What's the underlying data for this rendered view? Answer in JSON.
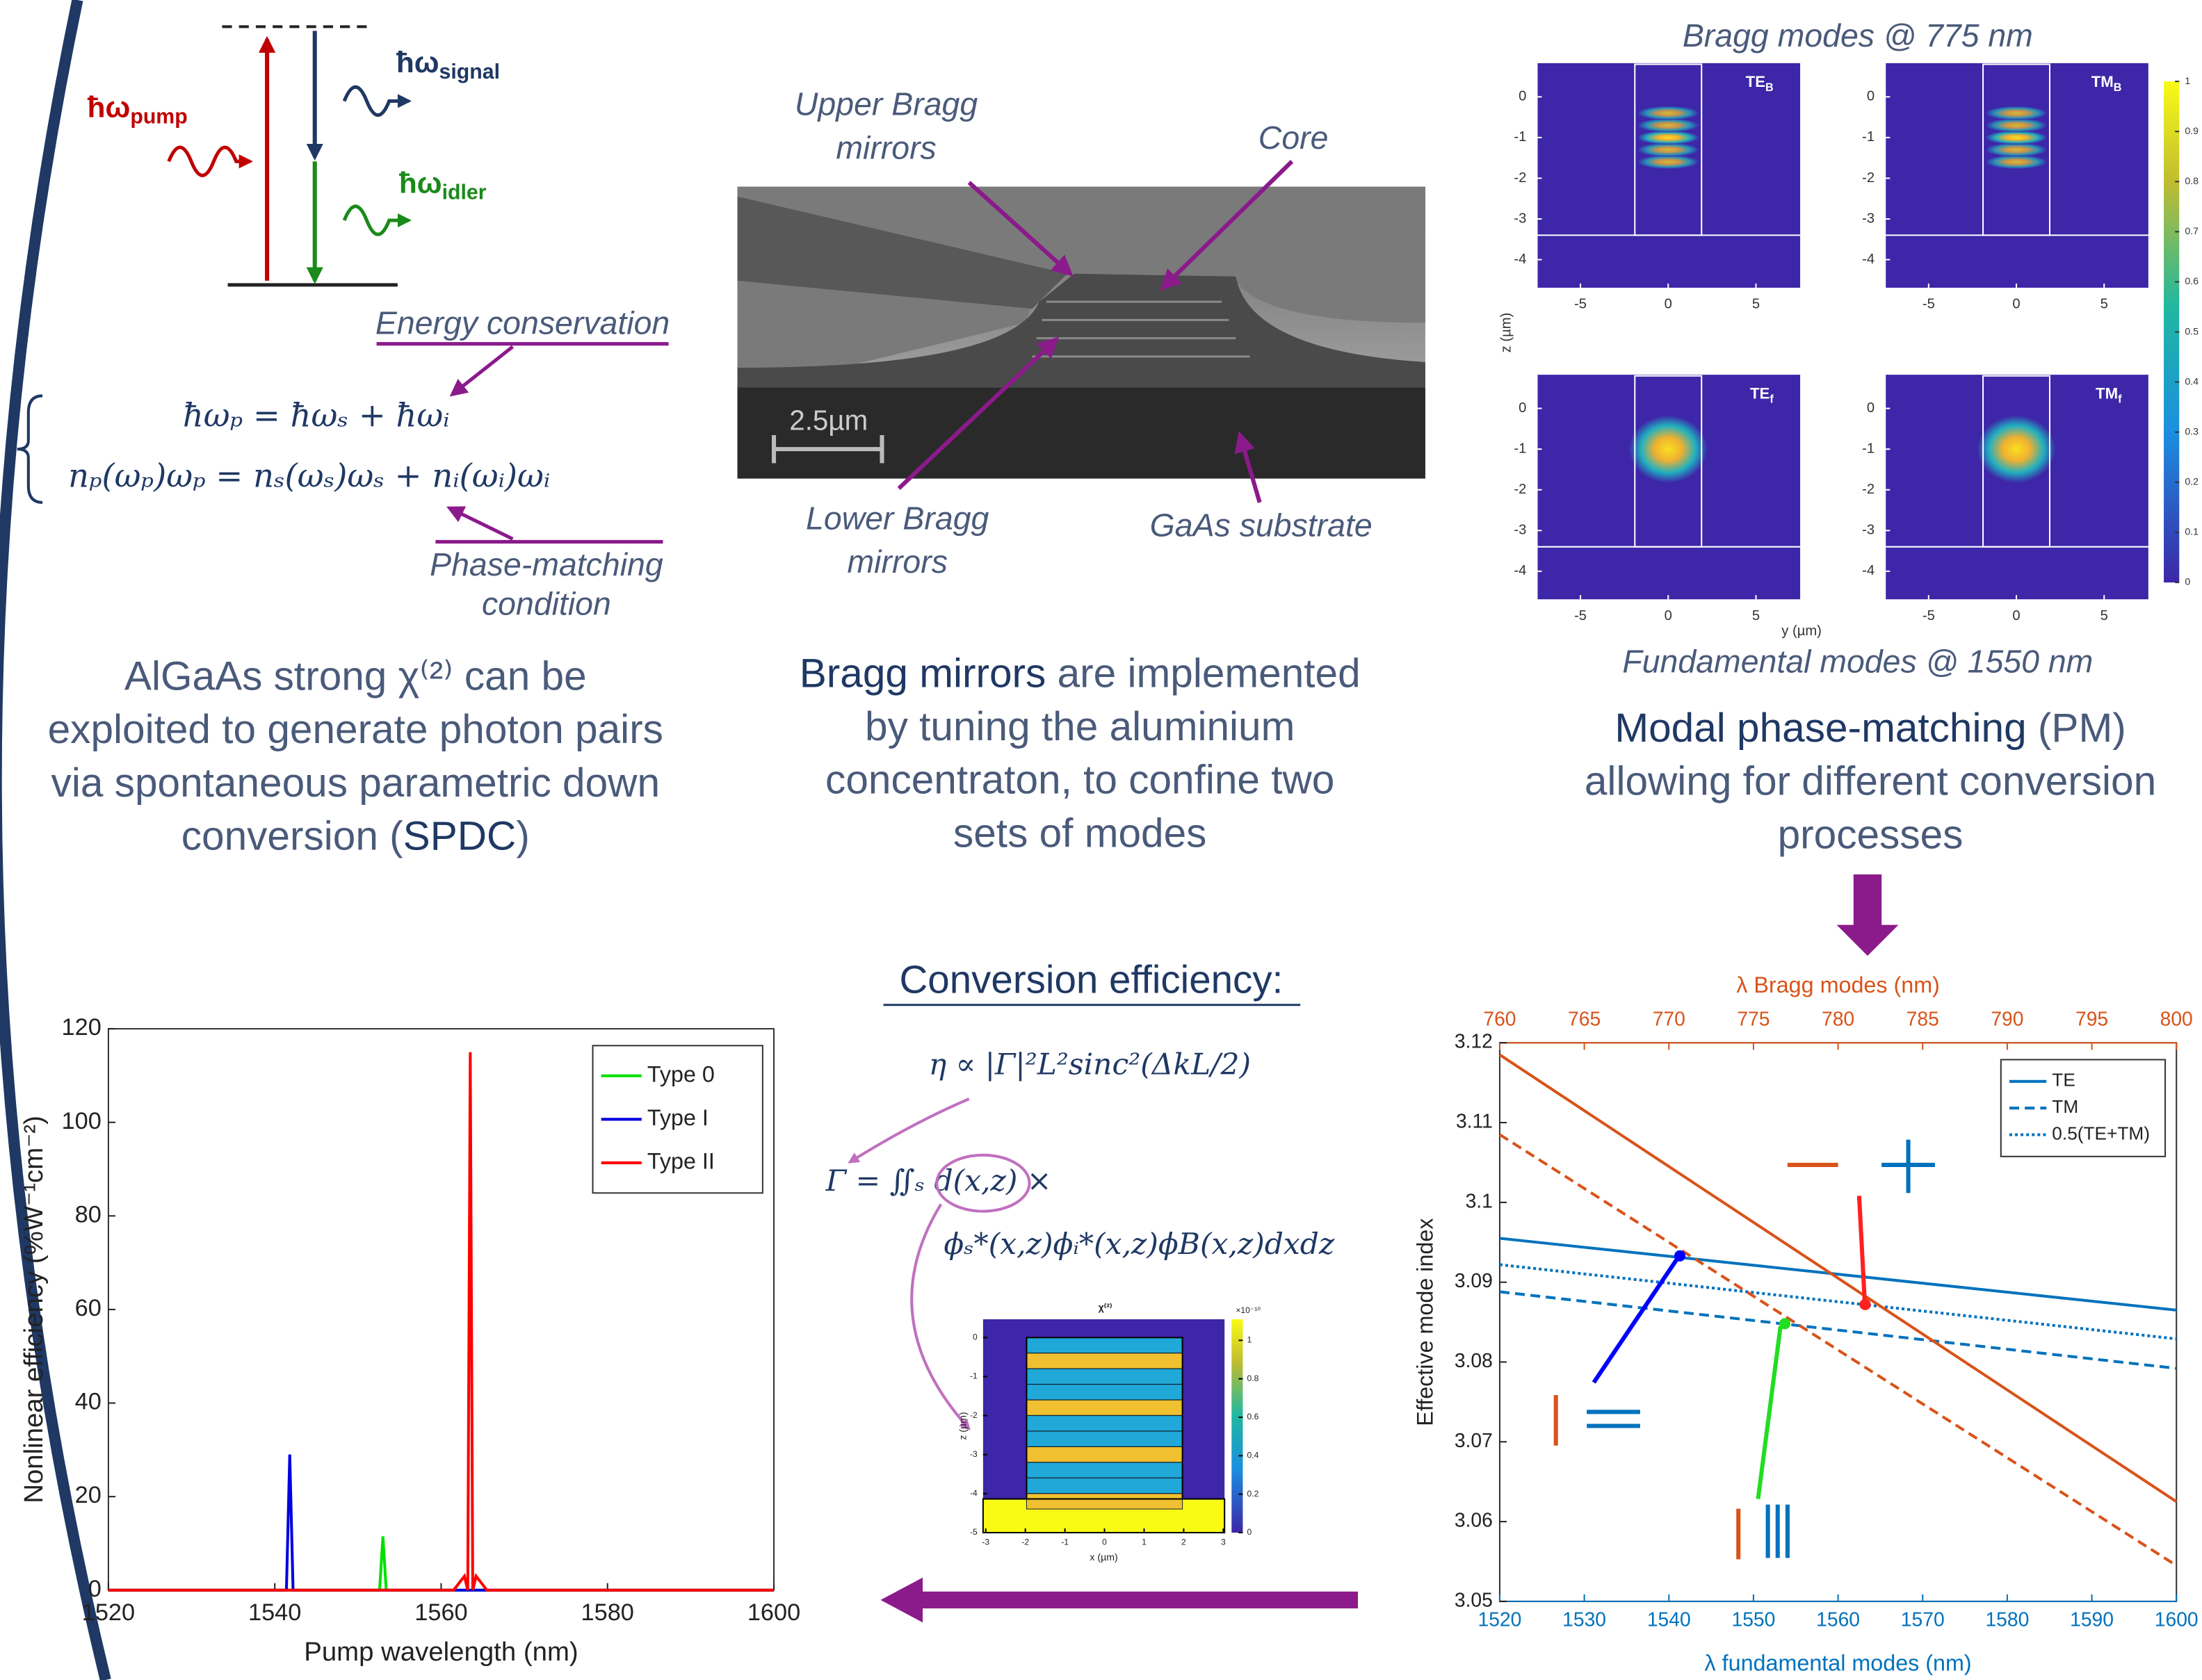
{
  "energy_diagram": {
    "pump": "ħω",
    "pump_sub": "pump",
    "signal": "ħω",
    "signal_sub": "signal",
    "idler": "ħω",
    "idler_sub": "idler"
  },
  "spdc_equations": {
    "energy_label": "Energy conservation",
    "eq1": "ħωₚ = ħωₛ + ħωᵢ",
    "eq2": "nₚ(ωₚ)ωₚ = nₛ(ωₛ)ωₛ + nᵢ(ωᵢ)ωᵢ",
    "phase_label": [
      "Phase-matching",
      "condition"
    ]
  },
  "captions": [
    [
      [
        {
          "text": "AlGaAs strong χ⁽²⁾ can be",
          "bold": false
        }
      ],
      [
        {
          "text": "exploited to generate photon pairs",
          "bold": false
        }
      ],
      [
        {
          "text": "via spontaneous parametric down",
          "bold": false
        }
      ],
      [
        {
          "text": "conversion (",
          "bold": false
        },
        {
          "text": "SPDC",
          "bold": true
        },
        {
          "text": ")",
          "bold": false
        }
      ]
    ],
    [
      [
        {
          "text": "Bragg mirrors",
          "bold": true
        },
        {
          "text": " are implemented",
          "bold": false
        }
      ],
      [
        {
          "text": "by tuning the aluminium",
          "bold": false
        }
      ],
      [
        {
          "text": "concentraton, to confine two",
          "bold": false
        }
      ],
      [
        {
          "text": "sets of modes",
          "bold": false
        }
      ]
    ],
    [
      [
        {
          "text": "Modal phase-matching",
          "bold": true
        },
        {
          "text": " (PM)",
          "bold": false
        }
      ],
      [
        {
          "text": "allowing for different conversion",
          "bold": false
        }
      ],
      [
        {
          "text": "processes",
          "bold": false
        }
      ]
    ]
  ],
  "sem_image": {
    "upper": [
      "Upper Bragg",
      "mirrors"
    ],
    "core": "Core",
    "lower": [
      "Lower Bragg",
      "mirrors"
    ],
    "substrate": "GaAs substrate",
    "scale": "2.5µm"
  },
  "mode_maps": {
    "title": "Bragg modes @ 775 nm",
    "bottom_title": "Fundamental modes @ 1550 nm",
    "panels": [
      {
        "label": "TE",
        "sub": "B"
      },
      {
        "label": "TM",
        "sub": "B"
      },
      {
        "label": "TE",
        "sub": "f"
      },
      {
        "label": "TM",
        "sub": "f"
      }
    ],
    "zticks": [
      0,
      -1,
      -2,
      -3,
      -4
    ],
    "yticks": [
      -5,
      0,
      5
    ],
    "z_label": "z (µm)",
    "y_label": "y (µm)",
    "colorbar_ticks": [
      0,
      0.1,
      0.2,
      0.3,
      0.4,
      0.5,
      0.6,
      0.7,
      0.8,
      0.9,
      1
    ]
  },
  "conversion": {
    "heading": "Conversion efficiency:",
    "eq1": "η ∝ |Γ|²L²sinc²(ΔkL/2)",
    "eq2": "Γ = ∬ₛ d(x,z) ×",
    "eq3": "ϕₛ*(x,z)ϕᵢ*(x,z)ϕB(x,z)dxdz",
    "chi_plot": {
      "title": "χ⁽²⁾",
      "scale": "×10⁻¹⁰",
      "xticks": [
        -3,
        -2,
        -1,
        0,
        1,
        2,
        3
      ],
      "zticks": [
        0,
        -1,
        -2,
        -3,
        -4,
        -5
      ],
      "colorbar_ticks": [
        0,
        0.2,
        0.4,
        0.6,
        0.8,
        1
      ],
      "x_label": "x (µm)",
      "z_label": "z (µm)"
    }
  },
  "chart_data": [
    {
      "type": "line",
      "x_label": "Pump wavelength (nm)",
      "y_label": "Nonlinear efficiency (%W⁻¹cm⁻²)",
      "xlim": [
        1520,
        1600
      ],
      "xticks": [
        1520,
        1540,
        1560,
        1580,
        1600
      ],
      "ylim": [
        0,
        120
      ],
      "yticks": [
        0,
        20,
        40,
        60,
        80,
        100,
        120
      ],
      "legend": "upper right",
      "series": [
        {
          "name": "Type 0",
          "color": "#00e000",
          "x": [
            1520,
            1552.6,
            1553,
            1553.4,
            1600
          ],
          "values": [
            0,
            0,
            11.5,
            0,
            0
          ]
        },
        {
          "name": "Type I",
          "color": "#0000e0",
          "x": [
            1520,
            1541.4,
            1541.8,
            1542.2,
            1600
          ],
          "values": [
            0,
            0,
            29,
            0,
            0
          ]
        },
        {
          "name": "Type II",
          "color": "#ff0000",
          "x": [
            1520,
            1561.5,
            1562.8,
            1563.2,
            1563.5,
            1563.8,
            1564.2,
            1565.5,
            1600
          ],
          "values": [
            0,
            0,
            3,
            0,
            115,
            0,
            3,
            0,
            0
          ]
        }
      ]
    },
    {
      "type": "line",
      "x_label": "λ fundamental modes (nm)",
      "x2_label": "λ Bragg modes (nm)",
      "y_label": "Effective mode index",
      "x_color": "#0072bd",
      "x2_color": "#d95319",
      "xlim": [
        1520,
        1600
      ],
      "xticks": [
        1520,
        1530,
        1540,
        1550,
        1560,
        1570,
        1580,
        1590,
        1600
      ],
      "x2lim": [
        760,
        800
      ],
      "x2ticks": [
        760,
        765,
        770,
        775,
        780,
        785,
        790,
        795,
        800
      ],
      "ylim": [
        3.05,
        3.12
      ],
      "yticks": [
        3.05,
        3.06,
        3.07,
        3.08,
        3.09,
        3.1,
        3.11,
        3.12
      ],
      "legend": "upper right",
      "series": [
        {
          "name": "TE",
          "color": "#0072bd",
          "dash": "solid",
          "x": [
            1520,
            1600
          ],
          "values": [
            3.0955,
            3.0865
          ]
        },
        {
          "name": "TM",
          "color": "#0072bd",
          "dash": "dashed",
          "x": [
            1520,
            1600
          ],
          "values": [
            3.0888,
            3.0792
          ]
        },
        {
          "name": "0.5(TE+TM)",
          "color": "#0072bd",
          "dash": "dotted",
          "x": [
            1520,
            1600
          ],
          "values": [
            3.0922,
            3.0829
          ]
        },
        {
          "color": "#d95319",
          "dash": "solid",
          "axis": "x2",
          "x": [
            760,
            800
          ],
          "values": [
            3.1185,
            3.0625
          ]
        },
        {
          "color": "#d95319",
          "dash": "dashed",
          "axis": "x2",
          "x": [
            760,
            800
          ],
          "values": [
            3.1085,
            3.0545
          ]
        }
      ],
      "points": [
        {
          "x": 1541.3,
          "y": 3.0933,
          "color": "#0000ff"
        },
        {
          "x": 1553.7,
          "y": 3.0848,
          "color": "#22dd22"
        },
        {
          "x": 1563.2,
          "y": 3.0872,
          "color": "#ff2020"
        }
      ]
    }
  ]
}
